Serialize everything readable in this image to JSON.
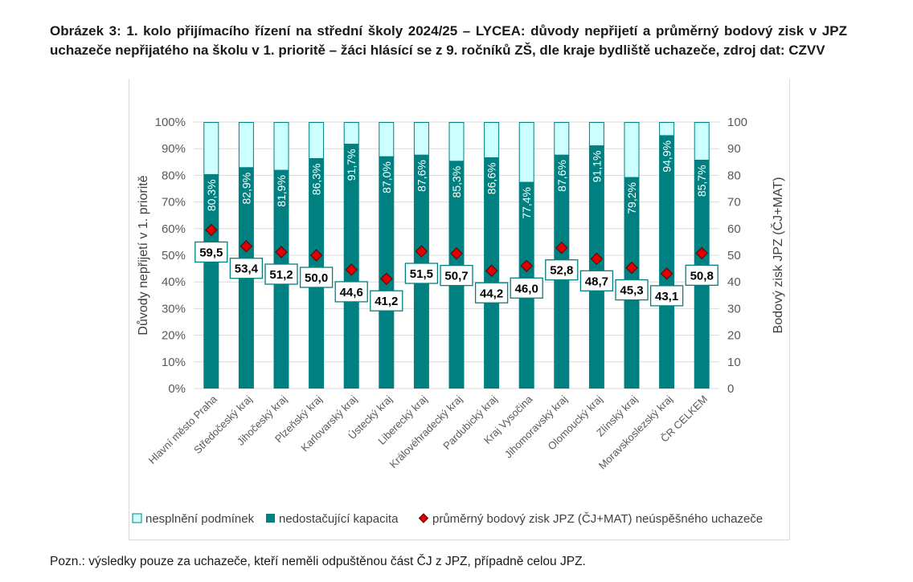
{
  "caption": "Obrázek 3: 1. kolo přijímacího řízení na střední školy 2024/25 – LYCEA: důvody nepřijetí a průměrný bodový zisk v JPZ uchazeče nepřijatého na školu v 1. prioritě – žáci hlásící se z 9. ročníků ZŠ, dle kraje bydliště uchazeče, zdroj dat: CZVV",
  "note": "Pozn.: výsledky pouze za uchazeče, kteří neměli odpuštěnou část ČJ z JPZ, případně celou JPZ.",
  "colors": {
    "capacity": "#008080",
    "conditions": "#ccffff",
    "conditions_border": "#008080",
    "marker": "#e00000",
    "marker_border": "#5a0000",
    "gridline": "#d9d9d9",
    "label_border": "#008080"
  },
  "chart_data": {
    "type": "bar",
    "stacked": true,
    "categories": [
      "Hlavní město Praha",
      "Středočeský kraj",
      "Jihočeský kraj",
      "Plzeňský kraj",
      "Karlovarský kraj",
      "Ústecký kraj",
      "Liberecký kraj",
      "Královéhradecký kraj",
      "Pardubický kraj",
      "Kraj Vysočina",
      "Jihomoravský kraj",
      "Olomoucký kraj",
      "Zlínský kraj",
      "Moravskoslezský kraj",
      "ČR CELKEM"
    ],
    "series": [
      {
        "name": "nesplnění podmínek",
        "values": [
          19.7,
          17.1,
          18.1,
          13.7,
          8.3,
          13.0,
          12.4,
          14.7,
          13.4,
          22.6,
          12.4,
          8.9,
          20.8,
          5.1,
          14.3
        ]
      },
      {
        "name": "nedostačující kapacita",
        "values": [
          80.3,
          82.9,
          81.9,
          86.3,
          91.7,
          87.0,
          87.6,
          85.3,
          86.6,
          77.4,
          87.6,
          91.1,
          79.2,
          94.9,
          85.7
        ],
        "labels": [
          "80,3%",
          "82,9%",
          "81,9%",
          "86,3%",
          "91,7%",
          "87,0%",
          "87,6%",
          "85,3%",
          "86,6%",
          "77,4%",
          "87,6%",
          "91,1%",
          "79,2%",
          "94,9%",
          "85,7%"
        ]
      },
      {
        "name": "průměrný bodový zisk JPZ (ČJ+MAT) neúspěšného uchazeče",
        "axis": "secondary",
        "values": [
          59.5,
          53.4,
          51.2,
          50.0,
          44.6,
          41.2,
          51.5,
          50.7,
          44.2,
          46.0,
          52.8,
          48.7,
          45.3,
          43.1,
          50.8
        ],
        "labels": [
          "59,5",
          "53,4",
          "51,2",
          "50,0",
          "44,6",
          "41,2",
          "51,5",
          "50,7",
          "44,2",
          "46,0",
          "52,8",
          "48,7",
          "45,3",
          "43,1",
          "50,8"
        ]
      }
    ],
    "ylabel": "Důvody nepřijetí v 1. prioritě",
    "ylabel2": "Bodový zisk JPZ (ČJ+MAT)",
    "ylim": [
      0,
      100
    ],
    "ylim2": [
      0,
      100
    ],
    "yticks": [
      "0%",
      "10%",
      "20%",
      "30%",
      "40%",
      "50%",
      "60%",
      "70%",
      "80%",
      "90%",
      "100%"
    ],
    "yticks2": [
      "0",
      "10",
      "20",
      "30",
      "40",
      "50",
      "60",
      "70",
      "80",
      "90",
      "100"
    ],
    "grid": true,
    "legend_position": "bottom"
  }
}
